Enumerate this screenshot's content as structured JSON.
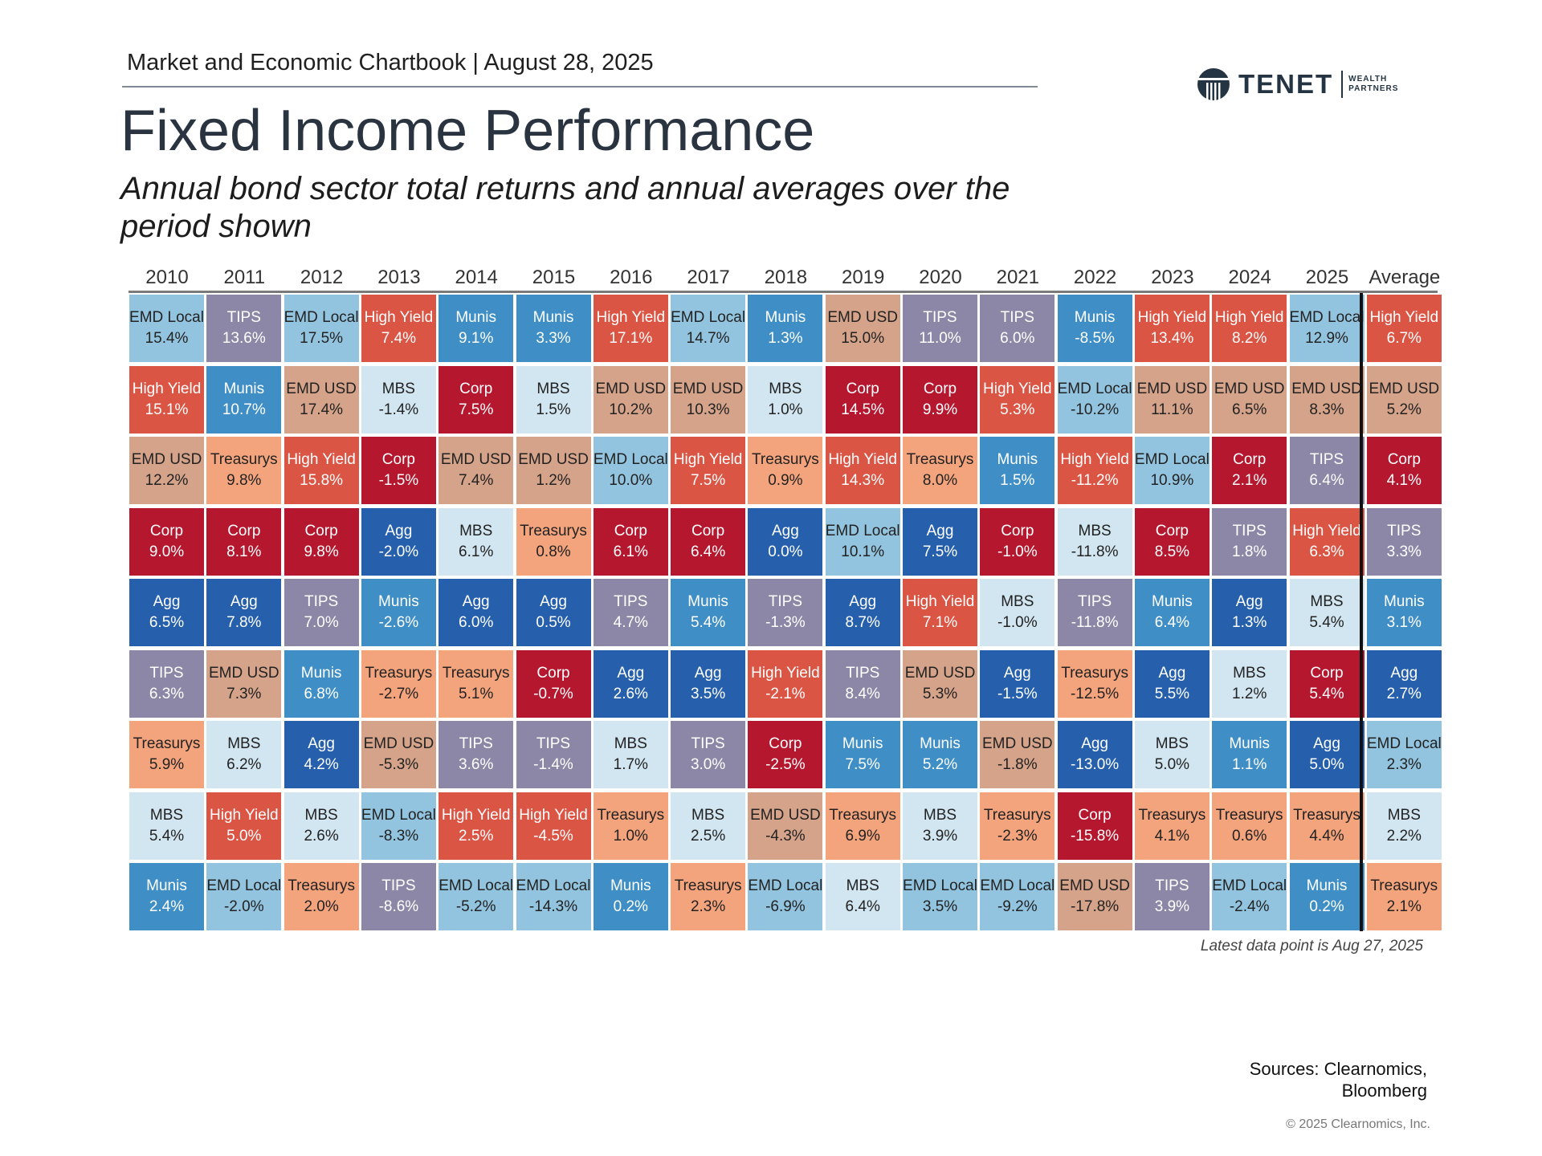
{
  "header": {
    "chartbook_line": "Market and Economic Chartbook | August 28, 2025",
    "title": "Fixed Income Performance",
    "subtitle": "Annual bond sector total returns and annual averages over the period shown"
  },
  "logo": {
    "name": "TENET",
    "sub_line1": "WEALTH",
    "sub_line2": "PARTNERS",
    "icon": "tenet-logo-icon"
  },
  "colors": {
    "Munis": "#3f8fc6",
    "MBS": "#d2e6f1",
    "TIPS": "#8c87a7",
    "Treasurys": "#f4a47d",
    "EMD Local": "#93c4df",
    "Agg": "#2660ac",
    "Corp": "#b4172e",
    "High Yield": "#db5545",
    "EMD USD": "#d5a38a"
  },
  "text_colors": {
    "light": "#ffffff",
    "dark": "#222222"
  },
  "chart_data": {
    "type": "table",
    "columns": [
      "2010",
      "2011",
      "2012",
      "2013",
      "2014",
      "2015",
      "2016",
      "2017",
      "2018",
      "2019",
      "2020",
      "2021",
      "2022",
      "2023",
      "2024",
      "2025",
      "Average"
    ],
    "rows_ranked_best_to_worst": [
      [
        {
          "label": "EMD Local",
          "value": "15.4%"
        },
        {
          "label": "TIPS",
          "value": "13.6%"
        },
        {
          "label": "EMD Local",
          "value": "17.5%"
        },
        {
          "label": "High Yield",
          "value": "7.4%"
        },
        {
          "label": "Munis",
          "value": "9.1%"
        },
        {
          "label": "Munis",
          "value": "3.3%"
        },
        {
          "label": "High Yield",
          "value": "17.1%"
        },
        {
          "label": "EMD Local",
          "value": "14.7%"
        },
        {
          "label": "Munis",
          "value": "1.3%"
        },
        {
          "label": "EMD USD",
          "value": "15.0%"
        },
        {
          "label": "TIPS",
          "value": "11.0%"
        },
        {
          "label": "TIPS",
          "value": "6.0%"
        },
        {
          "label": "Munis",
          "value": "-8.5%"
        },
        {
          "label": "High Yield",
          "value": "13.4%"
        },
        {
          "label": "High Yield",
          "value": "8.2%"
        },
        {
          "label": "EMD Local",
          "value": "12.9%"
        },
        {
          "label": "High Yield",
          "value": "6.7%"
        }
      ],
      [
        {
          "label": "High Yield",
          "value": "15.1%"
        },
        {
          "label": "Munis",
          "value": "10.7%"
        },
        {
          "label": "EMD USD",
          "value": "17.4%"
        },
        {
          "label": "MBS",
          "value": "-1.4%"
        },
        {
          "label": "Corp",
          "value": "7.5%"
        },
        {
          "label": "MBS",
          "value": "1.5%"
        },
        {
          "label": "EMD USD",
          "value": "10.2%"
        },
        {
          "label": "EMD USD",
          "value": "10.3%"
        },
        {
          "label": "MBS",
          "value": "1.0%"
        },
        {
          "label": "Corp",
          "value": "14.5%"
        },
        {
          "label": "Corp",
          "value": "9.9%"
        },
        {
          "label": "High Yield",
          "value": "5.3%"
        },
        {
          "label": "EMD Local",
          "value": "-10.2%"
        },
        {
          "label": "EMD USD",
          "value": "11.1%"
        },
        {
          "label": "EMD USD",
          "value": "6.5%"
        },
        {
          "label": "EMD USD",
          "value": "8.3%"
        },
        {
          "label": "EMD USD",
          "value": "5.2%"
        }
      ],
      [
        {
          "label": "EMD USD",
          "value": "12.2%"
        },
        {
          "label": "Treasurys",
          "value": "9.8%"
        },
        {
          "label": "High Yield",
          "value": "15.8%"
        },
        {
          "label": "Corp",
          "value": "-1.5%"
        },
        {
          "label": "EMD USD",
          "value": "7.4%"
        },
        {
          "label": "EMD USD",
          "value": "1.2%"
        },
        {
          "label": "EMD Local",
          "value": "10.0%"
        },
        {
          "label": "High Yield",
          "value": "7.5%"
        },
        {
          "label": "Treasurys",
          "value": "0.9%"
        },
        {
          "label": "High Yield",
          "value": "14.3%"
        },
        {
          "label": "Treasurys",
          "value": "8.0%"
        },
        {
          "label": "Munis",
          "value": "1.5%"
        },
        {
          "label": "High Yield",
          "value": "-11.2%"
        },
        {
          "label": "EMD Local",
          "value": "10.9%"
        },
        {
          "label": "Corp",
          "value": "2.1%"
        },
        {
          "label": "TIPS",
          "value": "6.4%"
        },
        {
          "label": "Corp",
          "value": "4.1%"
        }
      ],
      [
        {
          "label": "Corp",
          "value": "9.0%"
        },
        {
          "label": "Corp",
          "value": "8.1%"
        },
        {
          "label": "Corp",
          "value": "9.8%"
        },
        {
          "label": "Agg",
          "value": "-2.0%"
        },
        {
          "label": "MBS",
          "value": "6.1%"
        },
        {
          "label": "Treasurys",
          "value": "0.8%"
        },
        {
          "label": "Corp",
          "value": "6.1%"
        },
        {
          "label": "Corp",
          "value": "6.4%"
        },
        {
          "label": "Agg",
          "value": "0.0%"
        },
        {
          "label": "EMD Local",
          "value": "10.1%"
        },
        {
          "label": "Agg",
          "value": "7.5%"
        },
        {
          "label": "Corp",
          "value": "-1.0%"
        },
        {
          "label": "MBS",
          "value": "-11.8%"
        },
        {
          "label": "Corp",
          "value": "8.5%"
        },
        {
          "label": "TIPS",
          "value": "1.8%"
        },
        {
          "label": "High Yield",
          "value": "6.3%"
        },
        {
          "label": "TIPS",
          "value": "3.3%"
        }
      ],
      [
        {
          "label": "Agg",
          "value": "6.5%"
        },
        {
          "label": "Agg",
          "value": "7.8%"
        },
        {
          "label": "TIPS",
          "value": "7.0%"
        },
        {
          "label": "Munis",
          "value": "-2.6%"
        },
        {
          "label": "Agg",
          "value": "6.0%"
        },
        {
          "label": "Agg",
          "value": "0.5%"
        },
        {
          "label": "TIPS",
          "value": "4.7%"
        },
        {
          "label": "Munis",
          "value": "5.4%"
        },
        {
          "label": "TIPS",
          "value": "-1.3%"
        },
        {
          "label": "Agg",
          "value": "8.7%"
        },
        {
          "label": "High Yield",
          "value": "7.1%"
        },
        {
          "label": "MBS",
          "value": "-1.0%"
        },
        {
          "label": "TIPS",
          "value": "-11.8%"
        },
        {
          "label": "Munis",
          "value": "6.4%"
        },
        {
          "label": "Agg",
          "value": "1.3%"
        },
        {
          "label": "MBS",
          "value": "5.4%"
        },
        {
          "label": "Munis",
          "value": "3.1%"
        }
      ],
      [
        {
          "label": "TIPS",
          "value": "6.3%"
        },
        {
          "label": "EMD USD",
          "value": "7.3%"
        },
        {
          "label": "Munis",
          "value": "6.8%"
        },
        {
          "label": "Treasurys",
          "value": "-2.7%"
        },
        {
          "label": "Treasurys",
          "value": "5.1%"
        },
        {
          "label": "Corp",
          "value": "-0.7%"
        },
        {
          "label": "Agg",
          "value": "2.6%"
        },
        {
          "label": "Agg",
          "value": "3.5%"
        },
        {
          "label": "High Yield",
          "value": "-2.1%"
        },
        {
          "label": "TIPS",
          "value": "8.4%"
        },
        {
          "label": "EMD USD",
          "value": "5.3%"
        },
        {
          "label": "Agg",
          "value": "-1.5%"
        },
        {
          "label": "Treasurys",
          "value": "-12.5%"
        },
        {
          "label": "Agg",
          "value": "5.5%"
        },
        {
          "label": "MBS",
          "value": "1.2%"
        },
        {
          "label": "Corp",
          "value": "5.4%"
        },
        {
          "label": "Agg",
          "value": "2.7%"
        }
      ],
      [
        {
          "label": "Treasurys",
          "value": "5.9%"
        },
        {
          "label": "MBS",
          "value": "6.2%"
        },
        {
          "label": "Agg",
          "value": "4.2%"
        },
        {
          "label": "EMD USD",
          "value": "-5.3%"
        },
        {
          "label": "TIPS",
          "value": "3.6%"
        },
        {
          "label": "TIPS",
          "value": "-1.4%"
        },
        {
          "label": "MBS",
          "value": "1.7%"
        },
        {
          "label": "TIPS",
          "value": "3.0%"
        },
        {
          "label": "Corp",
          "value": "-2.5%"
        },
        {
          "label": "Munis",
          "value": "7.5%"
        },
        {
          "label": "Munis",
          "value": "5.2%"
        },
        {
          "label": "EMD USD",
          "value": "-1.8%"
        },
        {
          "label": "Agg",
          "value": "-13.0%"
        },
        {
          "label": "MBS",
          "value": "5.0%"
        },
        {
          "label": "Munis",
          "value": "1.1%"
        },
        {
          "label": "Agg",
          "value": "5.0%"
        },
        {
          "label": "EMD Local",
          "value": "2.3%"
        }
      ],
      [
        {
          "label": "MBS",
          "value": "5.4%"
        },
        {
          "label": "High Yield",
          "value": "5.0%"
        },
        {
          "label": "MBS",
          "value": "2.6%"
        },
        {
          "label": "EMD Local",
          "value": "-8.3%"
        },
        {
          "label": "High Yield",
          "value": "2.5%"
        },
        {
          "label": "High Yield",
          "value": "-4.5%"
        },
        {
          "label": "Treasurys",
          "value": "1.0%"
        },
        {
          "label": "MBS",
          "value": "2.5%"
        },
        {
          "label": "EMD USD",
          "value": "-4.3%"
        },
        {
          "label": "Treasurys",
          "value": "6.9%"
        },
        {
          "label": "MBS",
          "value": "3.9%"
        },
        {
          "label": "Treasurys",
          "value": "-2.3%"
        },
        {
          "label": "Corp",
          "value": "-15.8%"
        },
        {
          "label": "Treasurys",
          "value": "4.1%"
        },
        {
          "label": "Treasurys",
          "value": "0.6%"
        },
        {
          "label": "Treasurys",
          "value": "4.4%"
        },
        {
          "label": "MBS",
          "value": "2.2%"
        }
      ],
      [
        {
          "label": "Munis",
          "value": "2.4%"
        },
        {
          "label": "EMD Local",
          "value": "-2.0%"
        },
        {
          "label": "Treasurys",
          "value": "2.0%"
        },
        {
          "label": "TIPS",
          "value": "-8.6%"
        },
        {
          "label": "EMD Local",
          "value": "-5.2%"
        },
        {
          "label": "EMD Local",
          "value": "-14.3%"
        },
        {
          "label": "Munis",
          "value": "0.2%"
        },
        {
          "label": "Treasurys",
          "value": "2.3%"
        },
        {
          "label": "EMD Local",
          "value": "-6.9%"
        },
        {
          "label": "MBS",
          "value": "6.4%"
        },
        {
          "label": "EMD Local",
          "value": "3.5%"
        },
        {
          "label": "EMD Local",
          "value": "-9.2%"
        },
        {
          "label": "EMD USD",
          "value": "-17.8%"
        },
        {
          "label": "TIPS",
          "value": "3.9%"
        },
        {
          "label": "EMD Local",
          "value": "-2.4%"
        },
        {
          "label": "Munis",
          "value": "0.2%"
        },
        {
          "label": "Treasurys",
          "value": "2.1%"
        }
      ]
    ]
  },
  "footer": {
    "latest_note": "Latest data point is Aug 27, 2025",
    "sources_line1": "Sources: Clearnomics,",
    "sources_line2": "Bloomberg",
    "copyright": "© 2025 Clearnomics, Inc."
  }
}
